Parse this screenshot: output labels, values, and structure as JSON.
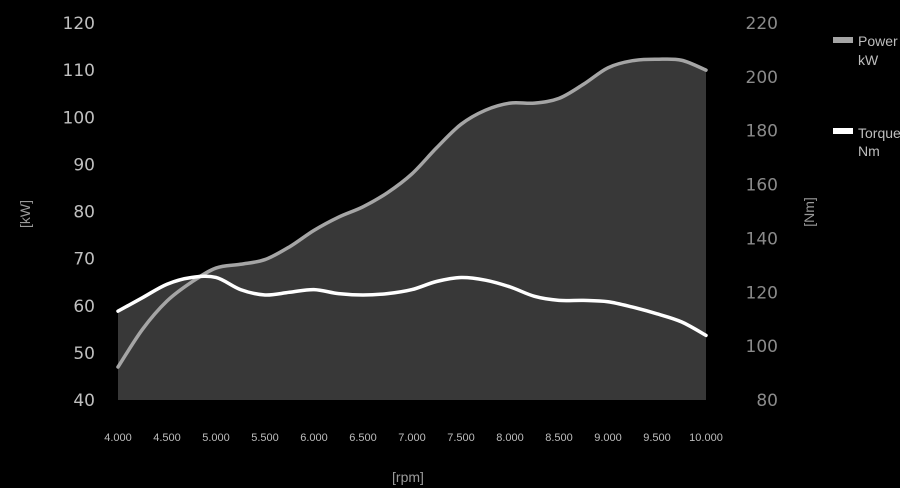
{
  "chart_data": {
    "type": "line",
    "xlabel": "[rpm]",
    "ylabel_left": "[kW]",
    "ylabel_right": "[Nm]",
    "x": [
      4000,
      4250,
      4500,
      4750,
      5000,
      5250,
      5500,
      5750,
      6000,
      6250,
      6500,
      6750,
      7000,
      7250,
      7500,
      7750,
      8000,
      8250,
      8500,
      8750,
      9000,
      9250,
      9500,
      9750,
      10000
    ],
    "x_ticks": [
      "4.000",
      "4.500",
      "5.000",
      "5.500",
      "6.000",
      "6.500",
      "7.000",
      "7.500",
      "8.000",
      "8.500",
      "9.000",
      "9.500",
      "10.000"
    ],
    "x_tick_values": [
      4000,
      4500,
      5000,
      5500,
      6000,
      6500,
      7000,
      7500,
      8000,
      8500,
      9000,
      9500,
      10000
    ],
    "ylim_left": [
      40,
      120
    ],
    "y_ticks_left": [
      "40",
      "50",
      "60",
      "70",
      "80",
      "90",
      "100",
      "110",
      "120"
    ],
    "y_tick_values_left": [
      40,
      50,
      60,
      70,
      80,
      90,
      100,
      110,
      120
    ],
    "ylim_right": [
      80,
      220
    ],
    "y_ticks_right": [
      "80",
      "100",
      "120",
      "140",
      "160",
      "180",
      "200",
      "220"
    ],
    "y_tick_values_right": [
      80,
      100,
      120,
      140,
      160,
      180,
      200,
      220
    ],
    "series": [
      {
        "name": "Power kW",
        "legend_line1": "Power",
        "legend_line2": "kW",
        "axis": "left",
        "color": "#a5a5a5",
        "fill": "#383838",
        "values": [
          47,
          55,
          61,
          65,
          68,
          68.8,
          69.8,
          72.5,
          76,
          78.8,
          81,
          84,
          88,
          93.5,
          98.5,
          101.5,
          103,
          103,
          104,
          107,
          110.5,
          112,
          112.3,
          112.1,
          110
        ]
      },
      {
        "name": "Torque Nm",
        "legend_line1": "Torque",
        "legend_line2": "Nm",
        "axis": "right",
        "color": "#ffffff",
        "values": [
          113,
          118,
          123,
          125.5,
          125.5,
          121,
          119,
          120,
          121,
          119.5,
          119,
          119.5,
          121,
          124,
          125.5,
          124.5,
          122,
          118.5,
          117,
          117,
          116.5,
          114.5,
          112,
          109,
          104
        ]
      }
    ],
    "legend_position": "right"
  }
}
